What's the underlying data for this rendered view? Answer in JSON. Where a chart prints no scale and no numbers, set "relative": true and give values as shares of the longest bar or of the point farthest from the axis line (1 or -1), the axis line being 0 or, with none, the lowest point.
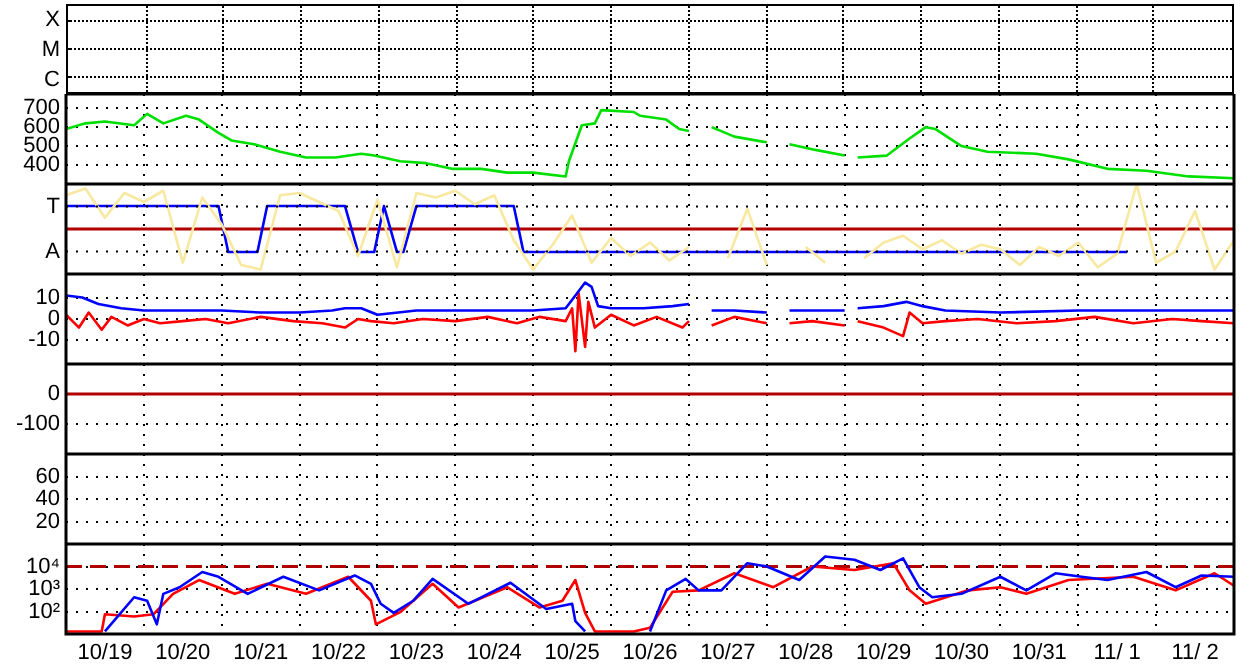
{
  "chart_data": [
    {
      "type": "other",
      "annotations": [
        "X",
        "M",
        "C"
      ]
    },
    {
      "type": "line",
      "series": [
        {
          "color": "#00e000",
          "x": [
            "--10-19T00:00",
            "--10-19T06:00",
            "--10-19T12:00",
            "--10-19T21:00",
            "--10-20T01:00",
            "--10-20T06:00",
            "--10-20T13:00",
            "--10-20T17:00",
            "--10-20T23:00",
            "--10-21T03:00",
            "--10-21T10:00",
            "--10-21T18:00",
            "--10-22T02:00",
            "--10-22T11:00",
            "--10-22T19:00",
            "--10-22T23:00",
            "--10-23T07:00",
            "--10-23T15:00",
            "--10-23T23:00",
            "--10-24T08:00",
            "--10-24T16:00",
            "--10-25T00:00",
            "--10-25T10:00",
            "--10-25T11:00",
            "--10-25T15:00",
            "--10-25T19:00",
            "--10-25T21:00",
            "--10-26T07:00",
            "--10-26T09:00",
            "--10-26T17:00",
            "--10-26T21:00",
            "--10-27T00:00",
            "--10-27T04:00",
            "--10-27T07:00",
            "--10-27T14:00",
            "--10-28T00:00",
            "--10-28T04:00",
            "--10-28T07:00",
            "--10-28T15:00",
            "--10-29T00:00",
            "--10-29T02:00",
            "--10-29T04:00",
            "--10-29T13:00",
            "--10-29T20:00",
            "--10-30T01:00",
            "--10-30T04:00",
            "--10-30T12:00",
            "--10-30T20:00",
            "--10-31T11:00",
            "--10-31T21:00",
            "--11-01T09:00",
            "--11-01T21:00",
            "--11-02T10:00",
            "--11-03T00:00"
          ],
          "values": [
            590,
            620,
            630,
            610,
            670,
            620,
            660,
            640,
            570,
            530,
            510,
            470,
            440,
            440,
            460,
            450,
            420,
            410,
            380,
            380,
            360,
            360,
            340,
            420,
            610,
            620,
            690,
            680,
            660,
            640,
            590,
            580,
            null,
            600,
            550,
            520,
            null,
            510,
            480,
            450,
            null,
            440,
            450,
            540,
            600,
            590,
            500,
            470,
            460,
            430,
            380,
            370,
            340,
            330
          ]
        }
      ],
      "xlim": [
        "--10-19",
        "--11-03"
      ],
      "xticks": [
        {
          "value": "--10-20",
          "label": null
        },
        {
          "value": "--10-21",
          "label": null
        },
        {
          "value": "--10-22",
          "label": null
        },
        {
          "value": "--10-23",
          "label": null
        },
        {
          "value": "--10-24",
          "label": null
        },
        {
          "value": "--10-25",
          "label": null
        },
        {
          "value": "--10-26",
          "label": null
        },
        {
          "value": "--10-27",
          "label": null
        },
        {
          "value": "--10-28",
          "label": null
        },
        {
          "value": "--10-29",
          "label": null
        },
        {
          "value": "--10-30",
          "label": null
        },
        {
          "value": "--10-31",
          "label": null
        },
        {
          "value": "--11-01",
          "label": null
        },
        {
          "value": "--11-02",
          "label": null
        }
      ],
      "ylim": [
        300,
        775
      ],
      "yticks": [
        400,
        500,
        600,
        700
      ],
      "grid": true,
      "tick_labels": "y"
    },
    {
      "type": "line",
      "relative": true,
      "series": [
        {
          "color": "#f8e8a0",
          "x": [
            "--10-19T00:00",
            "--10-19T06:00",
            "--10-19T12:00",
            "--10-19T18:00",
            "--10-20T00:00",
            "--10-20T06:00",
            "--10-20T12:00",
            "--10-20T18:00",
            "--10-21T00:00",
            "--10-21T06:00",
            "--10-21T12:00",
            "--10-21T18:00",
            "--10-22T00:00",
            "--10-22T06:00",
            "--10-22T12:00",
            "--10-22T18:00",
            "--10-23T00:00",
            "--10-23T06:00",
            "--10-23T12:00",
            "--10-23T18:00",
            "--10-24T00:00",
            "--10-24T06:00",
            "--10-24T12:00",
            "--10-24T18:00",
            "--10-25T00:00",
            "--10-25T06:00",
            "--10-25T12:00",
            "--10-25T18:00",
            "--10-26T00:00",
            "--10-26T06:00",
            "--10-26T12:00",
            "--10-26T18:00",
            "--10-27T00:00",
            "--10-27T06:00",
            "--10-27T12:00",
            "--10-27T18:00",
            "--10-28T00:00",
            "--10-28T06:00",
            "--10-28T12:00",
            "--10-28T18:00",
            "--10-29T00:00",
            "--10-29T06:00",
            "--10-29T12:00",
            "--10-29T18:00",
            "--10-30T00:00",
            "--10-30T06:00",
            "--10-30T12:00",
            "--10-30T18:00",
            "--10-31T00:00",
            "--10-31T06:00",
            "--10-31T12:00",
            "--10-31T18:00",
            "--11-01T00:00",
            "--11-01T06:00",
            "--11-01T12:00",
            "--11-01T18:00",
            "--11-02T00:00",
            "--11-02T06:00",
            "--11-02T12:00",
            "--11-02T18:00",
            "--11-03T00:00"
          ],
          "values": [
            0.75,
            0.9,
            0.25,
            0.8,
            0.6,
            0.85,
            -0.75,
            0.7,
            0.1,
            -0.8,
            -0.9,
            0.75,
            0.8,
            0.6,
            0.4,
            -0.6,
            0.65,
            -0.85,
            0.8,
            0.7,
            0.85,
            0.55,
            0.75,
            -0.25,
            -0.9,
            -0.35,
            0.3,
            -0.75,
            -0.2,
            -0.6,
            -0.3,
            -0.7,
            -0.4,
            null,
            -0.65,
            0.45,
            -0.8,
            null,
            -0.4,
            -0.75,
            null,
            -0.65,
            -0.3,
            -0.15,
            -0.45,
            -0.25,
            -0.55,
            -0.35,
            -0.45,
            -0.8,
            -0.4,
            -0.6,
            -0.3,
            -0.85,
            -0.55,
            1,
            -0.75,
            -0.5,
            0.4,
            -0.9,
            -0.25
          ]
        },
        {
          "color": "#0000ff",
          "x": [
            "--10-19T00:00",
            "--10-20T23:00",
            "--10-21T02:00",
            "--10-21T11:00",
            "--10-21T14:00",
            "--10-22T14:00",
            "--10-22T18:00",
            "--10-22T23:00",
            "--10-23T02:00",
            "--10-23T06:00",
            "--10-23T08:00",
            "--10-23T12:00",
            "--10-24T18:00",
            "--10-24T21:00",
            "--11-01T15:00"
          ],
          "values": [
            0.51,
            0.51,
            -0.51,
            -0.51,
            0.51,
            0.51,
            -0.51,
            -0.51,
            0.51,
            -0.51,
            -0.51,
            0.51,
            0.51,
            -0.51,
            -0.51
          ]
        }
      ],
      "ref_lines": [
        {
          "axis": "y",
          "value": 0,
          "color": "#b00000"
        }
      ],
      "xlim": [
        "--10-19",
        "--11-03"
      ],
      "xticks": [
        {
          "value": "--10-20",
          "label": null
        },
        {
          "value": "--10-21",
          "label": null
        },
        {
          "value": "--10-22",
          "label": null
        },
        {
          "value": "--10-23",
          "label": null
        },
        {
          "value": "--10-24",
          "label": null
        },
        {
          "value": "--10-25",
          "label": null
        },
        {
          "value": "--10-26",
          "label": null
        },
        {
          "value": "--10-27",
          "label": null
        },
        {
          "value": "--10-28",
          "label": null
        },
        {
          "value": "--10-29",
          "label": null
        },
        {
          "value": "--10-30",
          "label": null
        },
        {
          "value": "--10-31",
          "label": null
        },
        {
          "value": "--11-01",
          "label": null
        },
        {
          "value": "--11-02",
          "label": null
        }
      ],
      "annotations": [
        "T",
        "A"
      ],
      "grid": true,
      "tick_labels": "y"
    },
    {
      "type": "line",
      "series": [
        {
          "color": "#0000ff",
          "x": [
            "--10-19T00:00",
            "--10-19T05:00",
            "--10-19T10:00",
            "--10-19T17:00",
            "--10-20T00:00",
            "--10-20T12:00",
            "--10-21T00:00",
            "--10-21T12:00",
            "--10-22T00:00",
            "--10-22T10:00",
            "--10-22T14:00",
            "--10-22T19:00",
            "--10-23T00:00",
            "--10-23T12:00",
            "--10-24T00:00",
            "--10-24T12:00",
            "--10-25T00:00",
            "--10-25T10:00",
            "--10-25T13:00",
            "--10-25T16:00",
            "--10-25T18:00",
            "--10-25T20:00",
            "--10-26T00:00",
            "--10-26T10:00",
            "--10-26T19:00",
            "--10-27T00:00",
            "--10-27T02:00",
            "--10-27T07:00",
            "--10-27T14:00",
            "--10-28T00:00",
            "--10-28T02:00",
            "--10-28T07:00",
            "--10-28T14:00",
            "--10-29T00:00",
            "--10-29T02:00",
            "--10-29T04:00",
            "--10-29T12:00",
            "--10-29T19:00",
            "--10-30T00:00",
            "--10-30T07:00",
            "--10-31T00:00",
            "--11-01T00:00",
            "--11-02T00:00",
            "--11-03T00:00"
          ],
          "values": [
            11,
            10,
            7,
            5,
            4,
            4,
            4,
            3,
            3,
            4,
            5,
            5,
            2,
            4,
            4,
            4,
            4,
            5,
            11,
            17,
            15,
            6,
            5,
            5,
            6,
            7,
            null,
            4,
            4,
            3,
            null,
            4,
            4,
            4,
            null,
            5,
            6,
            8,
            6,
            4,
            3,
            4,
            4,
            4
          ]
        },
        {
          "color": "#ff0000",
          "x": [
            "--10-19T00:00",
            "--10-19T04:00",
            "--10-19T07:00",
            "--10-19T11:00",
            "--10-19T14:00",
            "--10-19T19:00",
            "--10-20T00:00",
            "--10-20T05:00",
            "--10-20T12:00",
            "--10-20T19:00",
            "--10-21T02:00",
            "--10-21T12:00",
            "--10-21T22:00",
            "--10-22T07:00",
            "--10-22T14:00",
            "--10-22T18:00",
            "--10-22T22:00",
            "--10-23T05:00",
            "--10-23T14:00",
            "--10-24T00:00",
            "--10-24T10:00",
            "--10-24T19:00",
            "--10-25T02:00",
            "--10-25T10:00",
            "--10-25T12:00",
            "--10-25T13:00",
            "--10-25T14:00",
            "--10-25T16:00",
            "--10-25T17:00",
            "--10-25T19:00",
            "--10-26T00:00",
            "--10-26T07:00",
            "--10-26T14:00",
            "--10-26T22:00",
            "--10-27T00:00",
            "--10-27T02:00",
            "--10-27T07:00",
            "--10-27T14:00",
            "--10-28T00:00",
            "--10-28T02:00",
            "--10-28T07:00",
            "--10-28T14:00",
            "--10-29T00:00",
            "--10-29T02:00",
            "--10-29T04:00",
            "--10-29T12:00",
            "--10-29T18:00",
            "--10-29T20:00",
            "--10-30T00:00",
            "--10-30T07:00",
            "--10-30T17:00",
            "--10-31T05:00",
            "--10-31T17:00",
            "--11-01T05:00",
            "--11-01T17:00",
            "--11-02T05:00",
            "--11-02T14:00",
            "--11-03T00:00"
          ],
          "values": [
            2,
            -4,
            3,
            -5,
            1,
            -3,
            0,
            -2,
            -1,
            0,
            -2,
            1,
            -1,
            -2,
            -4,
            0,
            -1,
            -2,
            0,
            -1,
            1,
            -2,
            1,
            -1,
            5,
            -15,
            12,
            -13,
            8,
            -4,
            2,
            -3,
            1,
            -4,
            -1,
            null,
            -3,
            1,
            -2,
            null,
            -2,
            -1,
            -3,
            null,
            -1,
            -4,
            -8,
            3,
            -2,
            -1,
            0,
            -2,
            -1,
            1,
            -2,
            0,
            -1,
            -2
          ]
        }
      ],
      "xlim": [
        "--10-19",
        "--11-03"
      ],
      "xticks": [
        {
          "value": "--10-20",
          "label": null
        },
        {
          "value": "--10-21",
          "label": null
        },
        {
          "value": "--10-22",
          "label": null
        },
        {
          "value": "--10-23",
          "label": null
        },
        {
          "value": "--10-24",
          "label": null
        },
        {
          "value": "--10-25",
          "label": null
        },
        {
          "value": "--10-26",
          "label": null
        },
        {
          "value": "--10-27",
          "label": null
        },
        {
          "value": "--10-28",
          "label": null
        },
        {
          "value": "--10-29",
          "label": null
        },
        {
          "value": "--10-30",
          "label": null
        },
        {
          "value": "--10-31",
          "label": null
        },
        {
          "value": "--11-01",
          "label": null
        },
        {
          "value": "--11-02",
          "label": null
        }
      ],
      "ylim": [
        -21,
        21
      ],
      "yticks": [
        10,
        0,
        -10
      ],
      "grid": true,
      "tick_labels": "y"
    },
    {
      "type": "line",
      "ref_lines": [
        {
          "axis": "y",
          "value": 0,
          "color": "#b00000"
        }
      ],
      "xlim": [
        "--10-19",
        "--11-03"
      ],
      "xticks": [
        {
          "value": "--10-20",
          "label": null
        },
        {
          "value": "--10-21",
          "label": null
        },
        {
          "value": "--10-22",
          "label": null
        },
        {
          "value": "--10-23",
          "label": null
        },
        {
          "value": "--10-24",
          "label": null
        },
        {
          "value": "--10-25",
          "label": null
        },
        {
          "value": "--10-26",
          "label": null
        },
        {
          "value": "--10-27",
          "label": null
        },
        {
          "value": "--10-28",
          "label": null
        },
        {
          "value": "--10-29",
          "label": null
        },
        {
          "value": "--10-30",
          "label": null
        },
        {
          "value": "--10-31",
          "label": null
        },
        {
          "value": "--11-01",
          "label": null
        },
        {
          "value": "--11-02",
          "label": null
        }
      ],
      "ylim": [
        -200,
        100
      ],
      "yticks": [
        0,
        -100
      ],
      "grid": true,
      "tick_labels": "y"
    },
    {
      "type": "line",
      "xlim": [
        "--10-19",
        "--11-03"
      ],
      "xticks": [
        {
          "value": "--10-20",
          "label": null
        },
        {
          "value": "--10-21",
          "label": null
        },
        {
          "value": "--10-22",
          "label": null
        },
        {
          "value": "--10-23",
          "label": null
        },
        {
          "value": "--10-24",
          "label": null
        },
        {
          "value": "--10-25",
          "label": null
        },
        {
          "value": "--10-26",
          "label": null
        },
        {
          "value": "--10-27",
          "label": null
        },
        {
          "value": "--10-28",
          "label": null
        },
        {
          "value": "--10-29",
          "label": null
        },
        {
          "value": "--10-30",
          "label": null
        },
        {
          "value": "--10-31",
          "label": null
        },
        {
          "value": "--11-01",
          "label": null
        },
        {
          "value": "--11-02",
          "label": null
        }
      ],
      "ylim": [
        0,
        80
      ],
      "yticks": [
        20,
        40,
        60
      ],
      "grid": true,
      "tick_labels": "y"
    },
    {
      "type": "line",
      "log": true,
      "series": [
        {
          "color": "#0000ff",
          "x": [
            "--10-19T12:00",
            "--10-19T21:00",
            "--10-20T01:00",
            "--10-20T04:00",
            "--10-20T06:00",
            "--10-20T11:00",
            "--10-20T18:00",
            "--10-20T23:00",
            "--10-21T08:00",
            "--10-21T19:00",
            "--10-22T06:00",
            "--10-22T17:00",
            "--10-22T22:00",
            "--10-23T01:00",
            "--10-23T05:00",
            "--10-23T11:00",
            "--10-23T17:00",
            "--10-24T04:00",
            "--10-24T17:00",
            "--10-25T04:00",
            "--10-25T12:00",
            "--10-25T13:00",
            "--10-25T16:00",
            "--10-25T19:00",
            "--10-26T00:00",
            "--10-26T07:00",
            "--10-26T12:00",
            "--10-26T17:00",
            "--10-26T23:00",
            "--10-27T03:00",
            "--10-27T10:00",
            "--10-27T18:00",
            "--10-28T00:00",
            "--10-28T10:00",
            "--10-28T18:00",
            "--10-29T03:00",
            "--10-29T11:00",
            "--10-29T18:00",
            "--10-29T23:00",
            "--10-30T03:00",
            "--10-30T12:00",
            "--10-31T00:00",
            "--10-31T08:00",
            "--10-31T17:00",
            "--11-01T01:00",
            "--11-01T09:00",
            "--11-01T21:00",
            "--11-02T06:00",
            "--11-02T14:00",
            "--11-03T00:00"
          ],
          "values": [
            13,
            430,
            300,
            27,
            610,
            1200,
            5700,
            3500,
            610,
            3500,
            870,
            4000,
            1700,
            220,
            87,
            300,
            2800,
            220,
            1900,
            130,
            220,
            37,
            13,
            null,
            null,
            null,
            13,
            870,
            2800,
            870,
            870,
            14000,
            10000,
            2500,
            28000,
            20000,
            7000,
            23000,
            1200,
            430,
            610,
            3500,
            870,
            5000,
            3500,
            2500,
            5700,
            1200,
            4000,
            3500
          ]
        },
        {
          "color": "#ff0000",
          "x": [
            "--10-19T00:00",
            "--10-19T11:00",
            "--10-19T12:00",
            "--10-19T21:00",
            "--10-20T03:00",
            "--10-20T09:00",
            "--10-20T17:00",
            "--10-21T04:00",
            "--10-21T14:00",
            "--10-22T02:00",
            "--10-22T15:00",
            "--10-22T22:00",
            "--10-22T23:30",
            "--10-23T07:00",
            "--10-23T17:00",
            "--10-24T01:00",
            "--10-24T16:00",
            "--10-25T02:00",
            "--10-25T09:00",
            "--10-25T13:00",
            "--10-25T16:00",
            "--10-25T19:00",
            "--10-26T07:00",
            "--10-26T12:00",
            "--10-26T19:00",
            "--10-27T03:00",
            "--10-27T14:00",
            "--10-28T02:00",
            "--10-28T14:00",
            "--10-29T03:00",
            "--10-29T15:00",
            "--10-29T20:00",
            "--10-30T01:00",
            "--10-30T14:00",
            "--10-31T00:00",
            "--10-31T08:00",
            "--10-31T21:00",
            "--11-01T17:00",
            "--11-02T06:00",
            "--11-02T18:00",
            "--11-03T00:00"
          ],
          "values": [
            13,
            13,
            76,
            60,
            76,
            610,
            2500,
            610,
            1700,
            610,
            3500,
            300,
            27,
            93,
            1700,
            150,
            1200,
            150,
            300,
            2500,
            87,
            13,
            13,
            19,
            760,
            870,
            5000,
            1200,
            10000,
            7000,
            14000,
            870,
            220,
            870,
            1200,
            610,
            2500,
            3500,
            870,
            5000,
            1400
          ]
        }
      ],
      "ref_lines": [
        {
          "axis": "y",
          "value": 10000,
          "color": "#b00000",
          "line_style": "dashed"
        }
      ],
      "xlim": [
        "--10-19",
        "--11-03"
      ],
      "xticks": [
        {
          "value": "--10-19T12:00",
          "label": "10/19"
        },
        {
          "value": "--10-20",
          "label": null
        },
        {
          "value": "--10-20T12:00",
          "label": "10/20"
        },
        {
          "value": "--10-21",
          "label": null
        },
        {
          "value": "--10-21T12:00",
          "label": "10/21"
        },
        {
          "value": "--10-22",
          "label": null
        },
        {
          "value": "--10-22T12:00",
          "label": "10/22"
        },
        {
          "value": "--10-23",
          "label": null
        },
        {
          "value": "--10-23T12:00",
          "label": "10/23"
        },
        {
          "value": "--10-24",
          "label": null
        },
        {
          "value": "--10-24T12:00",
          "label": "10/24"
        },
        {
          "value": "--10-25",
          "label": null
        },
        {
          "value": "--10-25T12:00",
          "label": "10/25"
        },
        {
          "value": "--10-26",
          "label": null
        },
        {
          "value": "--10-26T12:00",
          "label": "10/26"
        },
        {
          "value": "--10-27",
          "label": null
        },
        {
          "value": "--10-27T12:00",
          "label": "10/27"
        },
        {
          "value": "--10-28",
          "label": null
        },
        {
          "value": "--10-28T12:00",
          "label": "10/28"
        },
        {
          "value": "--10-29",
          "label": null
        },
        {
          "value": "--10-29T12:00",
          "label": "10/29"
        },
        {
          "value": "--10-30",
          "label": null
        },
        {
          "value": "--10-30T12:00",
          "label": "10/30"
        },
        {
          "value": "--10-31",
          "label": null
        },
        {
          "value": "--10-31T12:00",
          "label": "10/31"
        },
        {
          "value": "--11-01",
          "label": null
        },
        {
          "value": "--11-01T12:00",
          "label": "11/ 1"
        },
        {
          "value": "--11-02",
          "label": null
        },
        {
          "value": "--11-02T12:00",
          "label": "11/ 2"
        }
      ],
      "ylim": [
        10,
        100000
      ],
      "yticks": [
        {
          "value": 100,
          "label": "10²"
        },
        {
          "value": 1000,
          "label": "10³"
        },
        {
          "value": 10000,
          "label": "10⁴"
        }
      ],
      "grid": true
    }
  ]
}
